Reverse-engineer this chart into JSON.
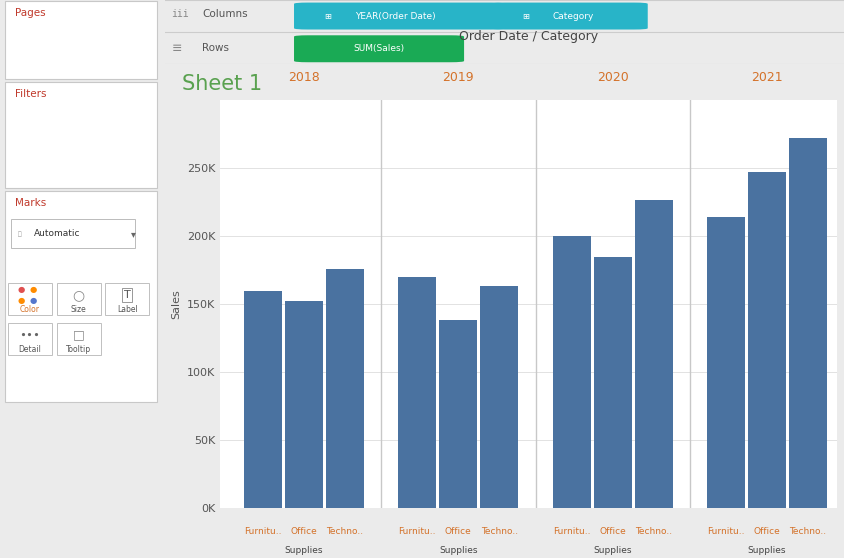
{
  "title": "Sheet 1",
  "chart_title": "Order Date / Category",
  "years": [
    "2018",
    "2019",
    "2020",
    "2021"
  ],
  "values": {
    "2018": [
      160000,
      152000,
      176000
    ],
    "2019": [
      170000,
      138000,
      163000
    ],
    "2020": [
      200000,
      185000,
      227000
    ],
    "2021": [
      214000,
      247000,
      272000
    ]
  },
  "bar_color": "#4a72a0",
  "ylim": [
    0,
    300000
  ],
  "yticks": [
    0,
    50000,
    100000,
    150000,
    200000,
    250000
  ],
  "ytick_labels": [
    "0K",
    "50K",
    "100K",
    "150K",
    "200K",
    "250K"
  ],
  "ylabel": "Sales",
  "background_color": "#ebebeb",
  "chart_bg": "#ffffff",
  "left_panel_bg": "#f0f0f0",
  "columns_pills": [
    "YEAR(Order Date)",
    "Category"
  ],
  "rows_pills": [
    "SUM(Sales)"
  ],
  "pill_color_blue": "#28b4c8",
  "pill_color_green": "#1aaa55",
  "year_label_color": "#d4722a",
  "cat_label_color_orange": "#d4722a",
  "cat_label_color_dark": "#444444",
  "title_color": "#59a14f",
  "section_label_color": "#c0392b",
  "marks_text_color": "#c0392b",
  "separator_color": "#cccccc",
  "header_text_color": "#555555",
  "pill_icon_color": "#ffffff"
}
